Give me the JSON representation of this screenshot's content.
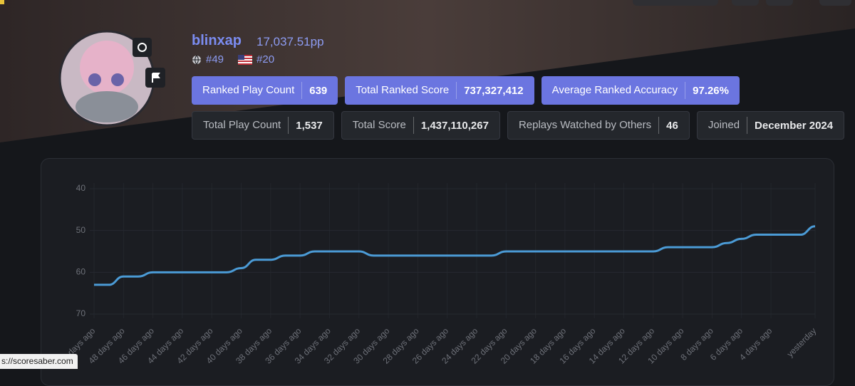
{
  "profile": {
    "name": "blinxap",
    "pp": "17,037.51pp",
    "global_rank": "#49",
    "country_rank": "#20"
  },
  "stats": [
    [
      {
        "label": "Ranked Play Count",
        "value": "639"
      },
      {
        "label": "Total Ranked Score",
        "value": "737,327,412"
      },
      {
        "label": "Average Ranked Accuracy",
        "value": "97.26%"
      }
    ],
    [
      {
        "label": "Total Play Count",
        "value": "1,537"
      },
      {
        "label": "Total Score",
        "value": "1,437,110,267"
      },
      {
        "label": "Replays Watched by Others",
        "value": "46"
      },
      {
        "label": "Joined",
        "value": "December 2024"
      }
    ]
  ],
  "status_url": "s://scoresaber.com",
  "chart_data": {
    "type": "line",
    "categories": [
      "days ago",
      null,
      "48 days ago",
      null,
      "46 days ago",
      null,
      "44 days ago",
      null,
      "42 days ago",
      null,
      "40 days ago",
      null,
      "38 days ago",
      null,
      "36 days ago",
      null,
      "34 days ago",
      null,
      "32 days ago",
      null,
      "30 days ago",
      null,
      "28 days ago",
      null,
      "26 days ago",
      null,
      "24 days ago",
      null,
      "22 days ago",
      null,
      "20 days ago",
      null,
      "18 days ago",
      null,
      "16 days ago",
      null,
      "14 days ago",
      null,
      "12 days ago",
      null,
      "10 days ago",
      null,
      "8 days ago",
      null,
      "6 days ago",
      null,
      "4 days ago",
      null,
      null,
      "yesterday"
    ],
    "values": [
      63,
      63,
      61,
      61,
      60,
      60,
      60,
      60,
      60,
      60,
      59,
      57,
      57,
      56,
      56,
      55,
      55,
      55,
      55,
      56,
      56,
      56,
      56,
      56,
      56,
      56,
      56,
      56,
      55,
      55,
      55,
      55,
      55,
      55,
      55,
      55,
      55,
      55,
      55,
      54,
      54,
      54,
      54,
      53,
      52,
      51,
      51,
      51,
      51,
      49
    ],
    "color": "#4b9bd6",
    "ylim": [
      40,
      70
    ],
    "yticks": [
      40,
      50,
      60,
      70
    ],
    "y_inverted": true,
    "grid": true
  }
}
